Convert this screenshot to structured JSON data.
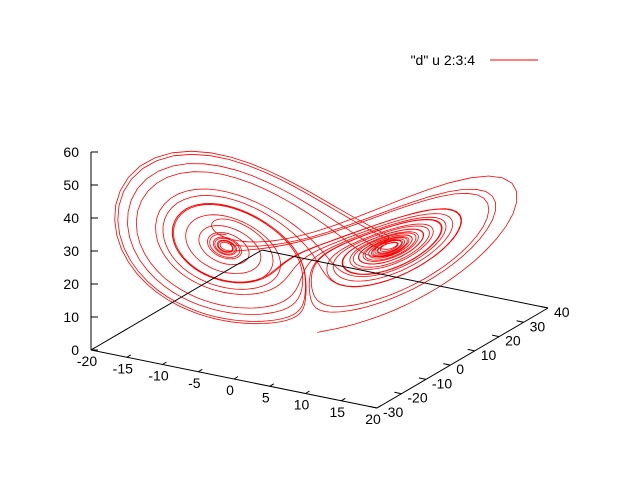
{
  "chart_data": {
    "type": "line3d",
    "title": "",
    "xlabel": "",
    "ylabel": "",
    "zlabel": "",
    "xlim": [
      -20,
      20
    ],
    "ylim": [
      -30,
      40
    ],
    "zlim": [
      0,
      60
    ],
    "x_ticks": [
      "-20",
      "-15",
      "-10",
      "-5",
      "0",
      "5",
      "10",
      "15",
      "20"
    ],
    "y_ticks": [
      "-30",
      "-20",
      "-10",
      "0",
      "10",
      "20",
      "30",
      "40"
    ],
    "z_ticks": [
      "0",
      "10",
      "20",
      "30",
      "40",
      "50",
      "60"
    ],
    "legend_position": "top-right",
    "grid": false,
    "series": [
      {
        "name": "\"d\" u 2:3:4",
        "color": "#ff0000",
        "generator": "lorenz",
        "sigma": 10,
        "rho": 28,
        "beta": 2.6667,
        "dt": 0.01,
        "steps": 3000,
        "start": [
          1,
          1,
          1
        ]
      }
    ]
  }
}
